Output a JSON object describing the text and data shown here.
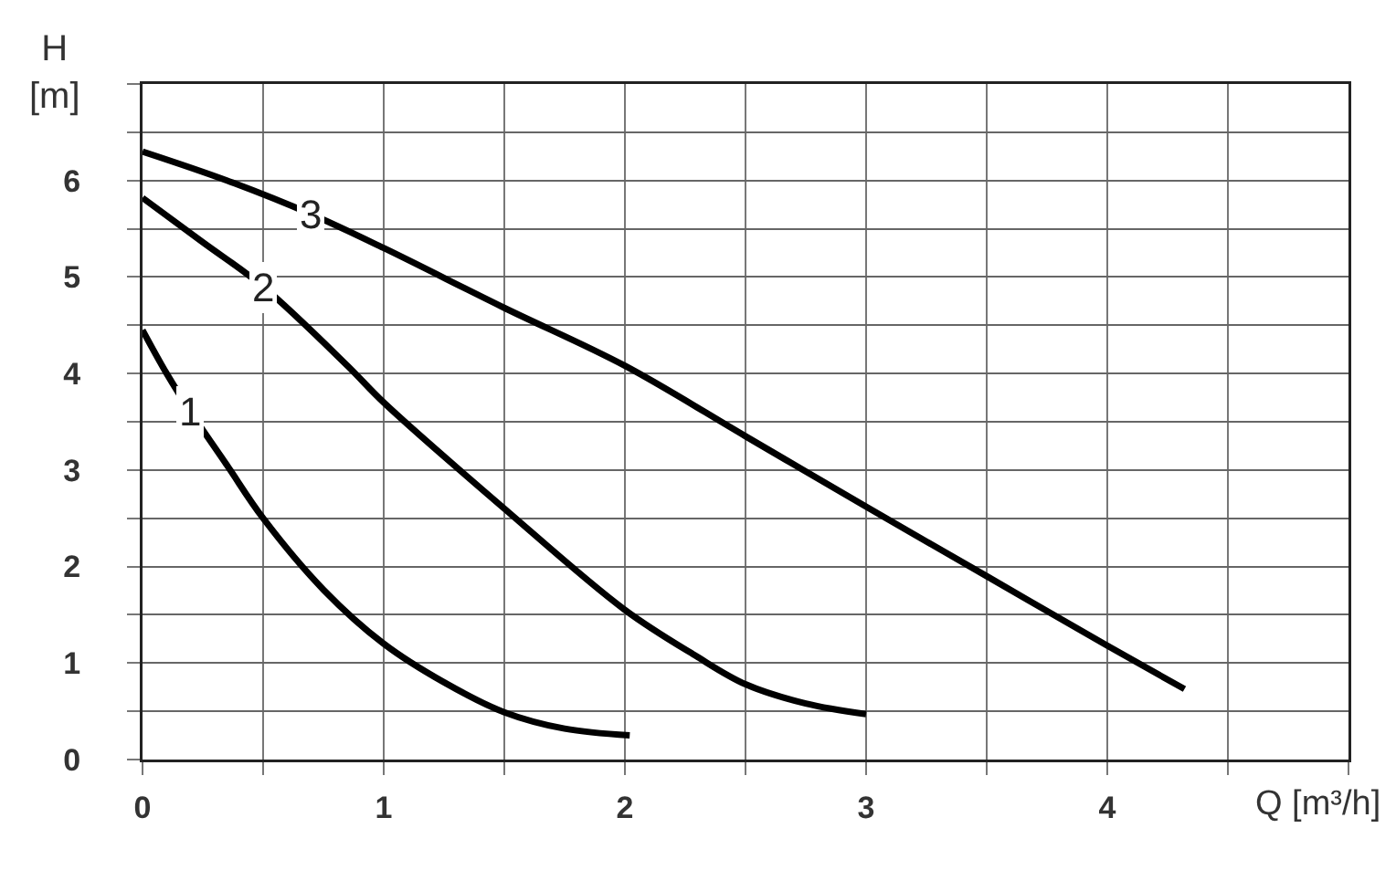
{
  "chart_data": {
    "type": "line",
    "xlabel": "Q [m³/h]",
    "ylabel": "H [m]",
    "series": [
      {
        "name": "1",
        "color": "#000000",
        "x": [
          0,
          0.1,
          0.2,
          0.35,
          0.5,
          0.75,
          1,
          1.25,
          1.5,
          1.75,
          2.02
        ],
        "values": [
          4.45,
          4.0,
          3.6,
          3.05,
          2.5,
          1.76,
          1.2,
          0.8,
          0.49,
          0.32,
          0.25
        ]
      },
      {
        "name": "2",
        "color": "#000000",
        "x": [
          0,
          0.25,
          0.5,
          0.85,
          1,
          1.5,
          2,
          2.29,
          2.5,
          2.75,
          3
        ],
        "values": [
          5.82,
          5.36,
          4.9,
          4.08,
          3.7,
          2.6,
          1.55,
          1.08,
          0.78,
          0.58,
          0.47
        ]
      },
      {
        "name": "3",
        "color": "#000000",
        "x": [
          0,
          0.35,
          0.7,
          1,
          1.5,
          2,
          2.5,
          3,
          3.5,
          4,
          4.32
        ],
        "values": [
          6.3,
          6.0,
          5.65,
          5.3,
          4.68,
          4.08,
          3.35,
          2.62,
          1.9,
          1.18,
          0.73
        ]
      }
    ],
    "xlim": [
      0,
      5
    ],
    "xticks": [
      0,
      {
        "value": 0.5,
        "label": null
      },
      1,
      {
        "value": 1.5,
        "label": null
      },
      2,
      {
        "value": 2.5,
        "label": null
      },
      3,
      {
        "value": 3.5,
        "label": null
      },
      4,
      {
        "value": 4.5,
        "label": null
      },
      {
        "value": 5,
        "label": null
      }
    ],
    "ylim": [
      0,
      7
    ],
    "yticks": [
      0,
      {
        "value": 0.5,
        "label": null
      },
      1,
      {
        "value": 1.5,
        "label": null
      },
      2,
      {
        "value": 2.5,
        "label": null
      },
      3,
      {
        "value": 3.5,
        "label": null
      },
      4,
      {
        "value": 4.5,
        "label": null
      },
      5,
      {
        "value": 5.5,
        "label": null
      },
      6,
      {
        "value": 6.5,
        "label": null
      },
      {
        "value": 7,
        "label": null
      }
    ],
    "grid": true,
    "legend": false,
    "marker": "none",
    "line_style": "solid"
  }
}
